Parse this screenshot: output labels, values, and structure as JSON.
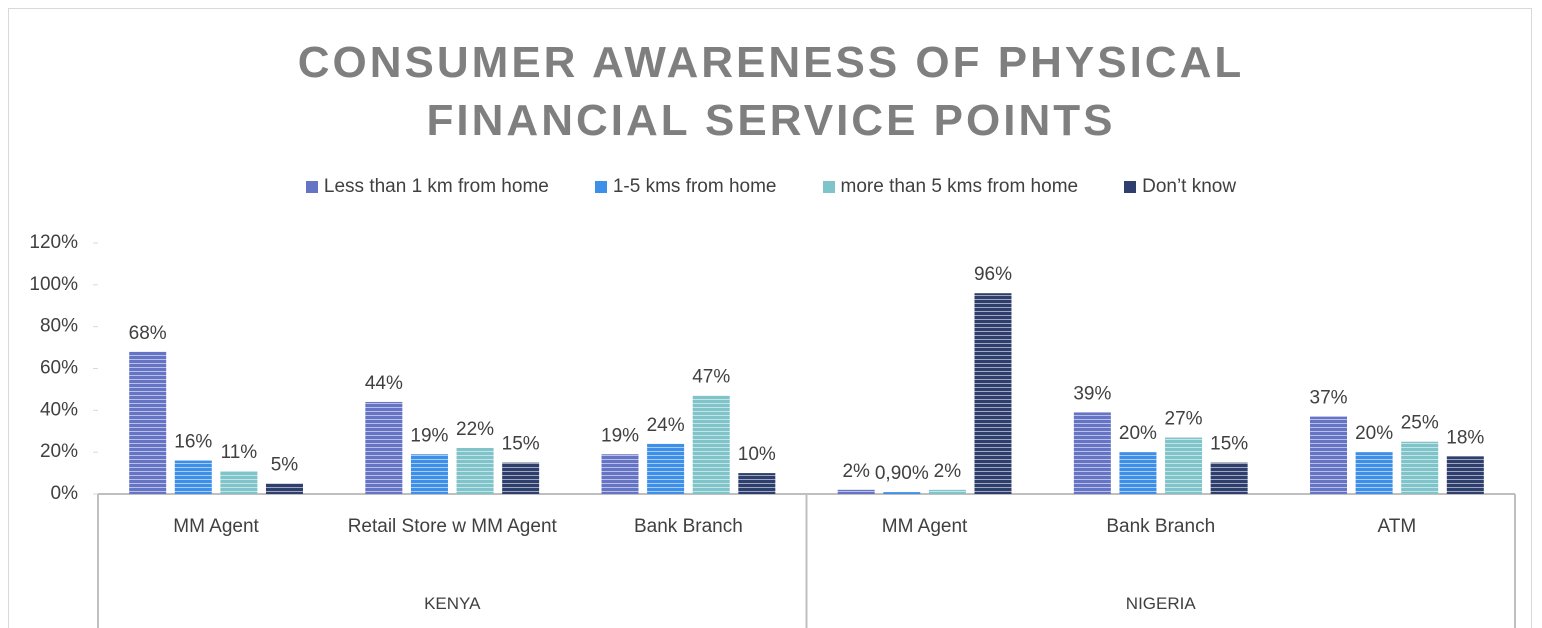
{
  "chart_data": {
    "type": "bar",
    "title": "CONSUMER AWARENESS OF PHYSICAL FINANCIAL SERVICE POINTS",
    "groups": [
      {
        "name": "KENYA",
        "categories": [
          "MM Agent",
          "Retail Store w MM Agent",
          "Bank Branch"
        ]
      },
      {
        "name": "NIGERIA",
        "categories": [
          "MM Agent",
          "Bank Branch",
          "ATM"
        ]
      }
    ],
    "series": [
      {
        "name": "Less than 1 km from home",
        "color": "#6574c4",
        "values": [
          68,
          44,
          19,
          2,
          39,
          37
        ],
        "value_labels": [
          "68%",
          "44%",
          "19%",
          "2%",
          "39%",
          "37%"
        ]
      },
      {
        "name": "1-5 kms from home",
        "color": "#3d8fe8",
        "values": [
          16,
          19,
          24,
          0.9,
          20,
          20
        ],
        "value_labels": [
          "16%",
          "19%",
          "24%",
          "0,90%",
          "20%",
          "20%"
        ]
      },
      {
        "name": "more than 5 kms from home",
        "color": "#7fc4c9",
        "values": [
          11,
          22,
          47,
          2,
          27,
          25
        ],
        "value_labels": [
          "11%",
          "22%",
          "47%",
          "2%",
          "27%",
          "25%"
        ]
      },
      {
        "name": "Don’t know",
        "color": "#2e3f6e",
        "values": [
          5,
          15,
          10,
          96,
          15,
          18
        ],
        "value_labels": [
          "5%",
          "15%",
          "10%",
          "96%",
          "15%",
          "18%"
        ]
      }
    ],
    "ylim": [
      0,
      120
    ],
    "yticks": [
      {
        "value": 0,
        "label": "0%"
      },
      {
        "value": 20,
        "label": "20%"
      },
      {
        "value": 40,
        "label": "40%"
      },
      {
        "value": 60,
        "label": "60%"
      },
      {
        "value": 80,
        "label": "80%"
      },
      {
        "value": 100,
        "label": "100%"
      },
      {
        "value": 120,
        "label": "120%"
      }
    ],
    "legend": "top"
  }
}
